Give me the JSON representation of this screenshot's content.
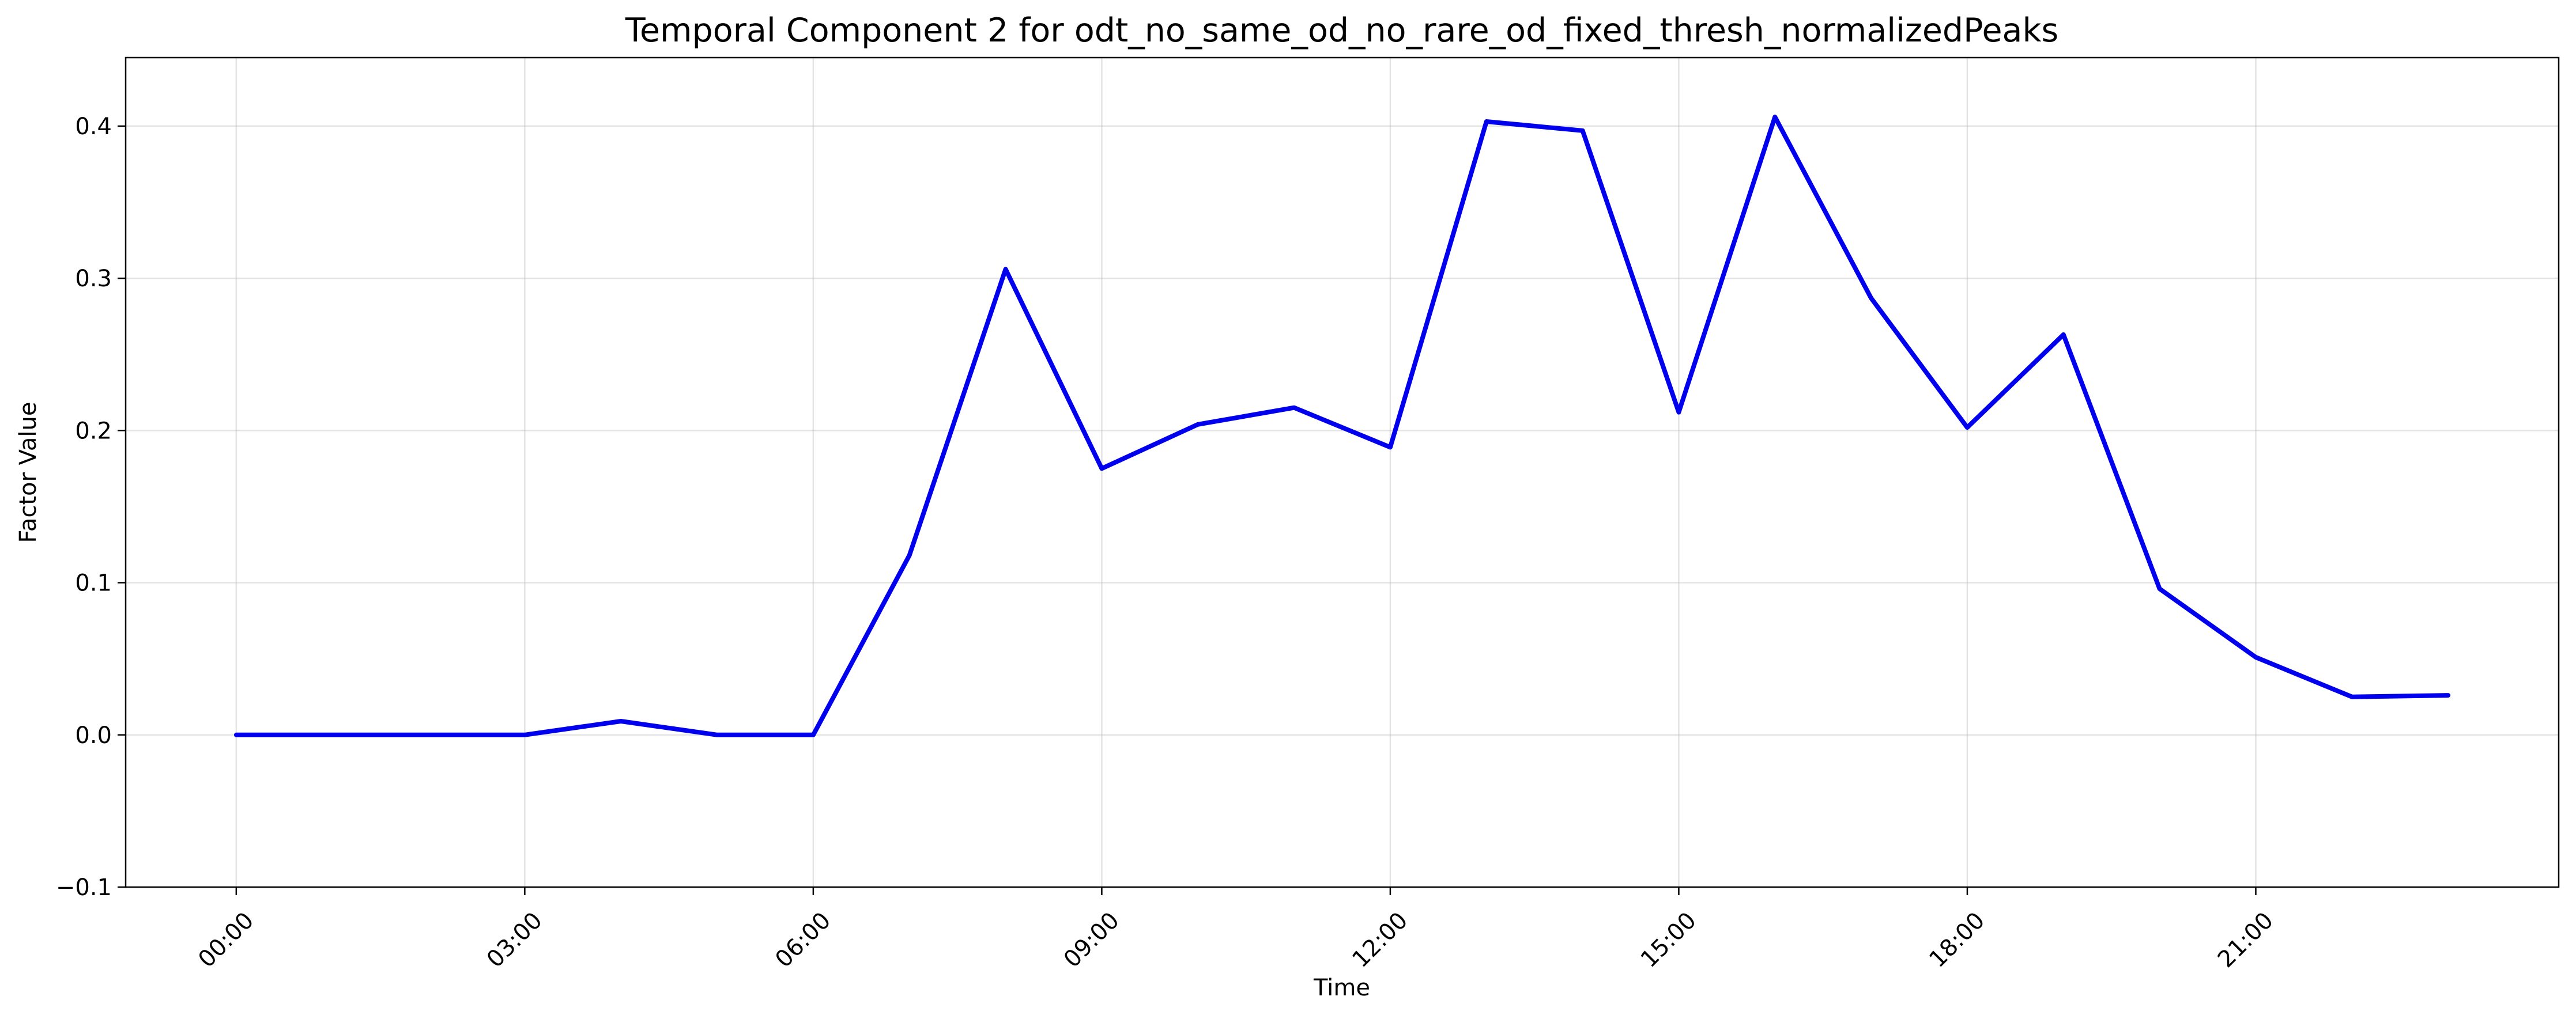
{
  "chart_data": {
    "type": "line",
    "title": "Temporal Component 2 for odt_no_same_od_no_rare_od_fixed_thresh_normalizedPeaks",
    "xlabel": "Time",
    "ylabel": "Factor Value",
    "x_hours": [
      0,
      1,
      2,
      3,
      4,
      5,
      6,
      7,
      8,
      9,
      10,
      11,
      12,
      13,
      14,
      15,
      16,
      17,
      18,
      19,
      20,
      21,
      22,
      23
    ],
    "x_ticks": [
      {
        "hour": 0,
        "label": "00:00"
      },
      {
        "hour": 3,
        "label": "03:00"
      },
      {
        "hour": 6,
        "label": "06:00"
      },
      {
        "hour": 9,
        "label": "09:00"
      },
      {
        "hour": 12,
        "label": "12:00"
      },
      {
        "hour": 15,
        "label": "15:00"
      },
      {
        "hour": 18,
        "label": "18:00"
      },
      {
        "hour": 21,
        "label": "21:00"
      }
    ],
    "xlim": [
      -1.15,
      24.15
    ],
    "ylim": [
      -0.1,
      0.445
    ],
    "y_ticks": [
      {
        "value": -0.1,
        "label": "−0.1"
      },
      {
        "value": 0.0,
        "label": "0.0"
      },
      {
        "value": 0.1,
        "label": "0.1"
      },
      {
        "value": 0.2,
        "label": "0.2"
      },
      {
        "value": 0.3,
        "label": "0.3"
      },
      {
        "value": 0.4,
        "label": "0.4"
      }
    ],
    "grid": true,
    "series": [
      {
        "color": "#0000ee",
        "values": [
          0.0,
          0.0,
          0.0,
          0.0,
          0.009,
          0.0,
          0.0,
          0.118,
          0.306,
          0.175,
          0.204,
          0.215,
          0.189,
          0.403,
          0.397,
          0.212,
          0.406,
          0.287,
          0.202,
          0.263,
          0.096,
          0.051,
          0.025,
          0.026
        ]
      }
    ]
  }
}
